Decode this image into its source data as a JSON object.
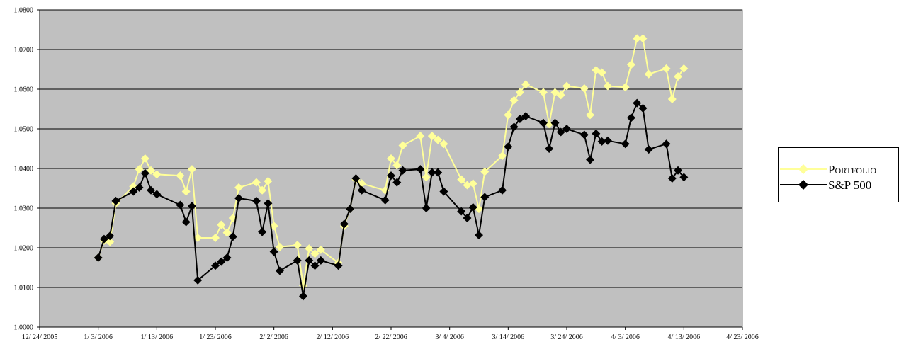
{
  "chart_data": {
    "type": "line",
    "title": "",
    "xlabel": "",
    "ylabel": "",
    "ylim": [
      1.0,
      1.08
    ],
    "y_ticks": [
      "1.0000",
      "1.0100",
      "1.0200",
      "1.0300",
      "1.0400",
      "1.0500",
      "1.0600",
      "1.0700",
      "1.0800"
    ],
    "x_ticks": [
      "12/24/2005",
      "1/3/2006",
      "1/13/2006",
      "1/23/2006",
      "2/2/2006",
      "2/12/2006",
      "2/22/2006",
      "3/4/2006",
      "3/14/2006",
      "3/24/2006",
      "4/3/2006",
      "4/13/2006",
      "4/23/2006"
    ],
    "x_tick_labels": [
      "12/ 24/ 2005",
      "1/ 3/ 2006",
      "1/ 13/ 2006",
      "1/ 23/ 2006",
      "2/ 2/ 2006",
      "2/ 12/ 2006",
      "2/ 22/ 2006",
      "3/ 4/ 2006",
      "3/ 14/ 2006",
      "3/ 24/ 2006",
      "4/ 3/ 2006",
      "4/ 13/ 2006",
      "4/ 23/ 2006"
    ],
    "grid": true,
    "plot_background": "#c0c0c0",
    "legend_position": "right",
    "series": [
      {
        "name": "Portfolio",
        "color": "#ffff99",
        "marker": "diamond",
        "points": [
          [
            "2006-01-03",
            1.0175
          ],
          [
            "2006-01-04",
            1.0218
          ],
          [
            "2006-01-05",
            1.0215
          ],
          [
            "2006-01-06",
            1.0312
          ],
          [
            "2006-01-09",
            1.0355
          ],
          [
            "2006-01-10",
            1.0398
          ],
          [
            "2006-01-11",
            1.0425
          ],
          [
            "2006-01-12",
            1.0395
          ],
          [
            "2006-01-13",
            1.0385
          ],
          [
            "2006-01-17",
            1.0382
          ],
          [
            "2006-01-18",
            1.0342
          ],
          [
            "2006-01-19",
            1.0398
          ],
          [
            "2006-01-20",
            1.0225
          ],
          [
            "2006-01-23",
            1.0225
          ],
          [
            "2006-01-24",
            1.0258
          ],
          [
            "2006-01-25",
            1.0238
          ],
          [
            "2006-01-26",
            1.0275
          ],
          [
            "2006-01-27",
            1.0352
          ],
          [
            "2006-01-30",
            1.0365
          ],
          [
            "2006-01-31",
            1.0345
          ],
          [
            "2006-02-01",
            1.0368
          ],
          [
            "2006-02-02",
            1.0255
          ],
          [
            "2006-02-03",
            1.0202
          ],
          [
            "2006-02-06",
            1.0207
          ],
          [
            "2006-02-07",
            1.0105
          ],
          [
            "2006-02-08",
            1.0198
          ],
          [
            "2006-02-09",
            1.0185
          ],
          [
            "2006-02-10",
            1.0195
          ],
          [
            "2006-02-13",
            1.0162
          ],
          [
            "2006-02-14",
            1.0255
          ],
          [
            "2006-02-15",
            1.0298
          ],
          [
            "2006-02-16",
            1.0372
          ],
          [
            "2006-02-17",
            1.0362
          ],
          [
            "2006-02-21",
            1.0345
          ],
          [
            "2006-02-22",
            1.0425
          ],
          [
            "2006-02-23",
            1.0408
          ],
          [
            "2006-02-24",
            1.0458
          ],
          [
            "2006-02-27",
            1.0482
          ],
          [
            "2006-02-28",
            1.0378
          ],
          [
            "2006-03-01",
            1.0482
          ],
          [
            "2006-03-02",
            1.0472
          ],
          [
            "2006-03-03",
            1.0462
          ],
          [
            "2006-03-06",
            1.0372
          ],
          [
            "2006-03-07",
            1.0358
          ],
          [
            "2006-03-08",
            1.0362
          ],
          [
            "2006-03-09",
            1.0298
          ],
          [
            "2006-03-10",
            1.0392
          ],
          [
            "2006-03-13",
            1.0432
          ],
          [
            "2006-03-14",
            1.0535
          ],
          [
            "2006-03-15",
            1.0572
          ],
          [
            "2006-03-16",
            1.0592
          ],
          [
            "2006-03-17",
            1.0612
          ],
          [
            "2006-03-20",
            1.0592
          ],
          [
            "2006-03-21",
            1.0512
          ],
          [
            "2006-03-22",
            1.0592
          ],
          [
            "2006-03-23",
            1.0585
          ],
          [
            "2006-03-24",
            1.0608
          ],
          [
            "2006-03-27",
            1.0602
          ],
          [
            "2006-03-28",
            1.0535
          ],
          [
            "2006-03-29",
            1.0648
          ],
          [
            "2006-03-30",
            1.0642
          ],
          [
            "2006-03-31",
            1.0608
          ],
          [
            "2006-04-03",
            1.0605
          ],
          [
            "2006-04-04",
            1.0662
          ],
          [
            "2006-04-05",
            1.0728
          ],
          [
            "2006-04-06",
            1.0728
          ],
          [
            "2006-04-07",
            1.0638
          ],
          [
            "2006-04-10",
            1.0652
          ],
          [
            "2006-04-11",
            1.0575
          ],
          [
            "2006-04-12",
            1.0632
          ],
          [
            "2006-04-13",
            1.0652
          ]
        ]
      },
      {
        "name": "S&P 500",
        "color": "#000000",
        "marker": "diamond",
        "points": [
          [
            "2006-01-03",
            1.0175
          ],
          [
            "2006-01-04",
            1.0222
          ],
          [
            "2006-01-05",
            1.023
          ],
          [
            "2006-01-06",
            1.0318
          ],
          [
            "2006-01-09",
            1.0342
          ],
          [
            "2006-01-10",
            1.0352
          ],
          [
            "2006-01-11",
            1.0388
          ],
          [
            "2006-01-12",
            1.0345
          ],
          [
            "2006-01-13",
            1.0335
          ],
          [
            "2006-01-17",
            1.0308
          ],
          [
            "2006-01-18",
            1.0265
          ],
          [
            "2006-01-19",
            1.0305
          ],
          [
            "2006-01-20",
            1.0118
          ],
          [
            "2006-01-23",
            1.0155
          ],
          [
            "2006-01-24",
            1.0165
          ],
          [
            "2006-01-25",
            1.0175
          ],
          [
            "2006-01-26",
            1.0228
          ],
          [
            "2006-01-27",
            1.0325
          ],
          [
            "2006-01-30",
            1.0318
          ],
          [
            "2006-01-31",
            1.024
          ],
          [
            "2006-02-01",
            1.0312
          ],
          [
            "2006-02-02",
            1.019
          ],
          [
            "2006-02-03",
            1.0142
          ],
          [
            "2006-02-06",
            1.0168
          ],
          [
            "2006-02-07",
            1.0078
          ],
          [
            "2006-02-08",
            1.0168
          ],
          [
            "2006-02-09",
            1.0155
          ],
          [
            "2006-02-10",
            1.0168
          ],
          [
            "2006-02-13",
            1.0155
          ],
          [
            "2006-02-14",
            1.026
          ],
          [
            "2006-02-15",
            1.0298
          ],
          [
            "2006-02-16",
            1.0375
          ],
          [
            "2006-02-17",
            1.0345
          ],
          [
            "2006-02-21",
            1.032
          ],
          [
            "2006-02-22",
            1.0382
          ],
          [
            "2006-02-23",
            1.0365
          ],
          [
            "2006-02-24",
            1.0395
          ],
          [
            "2006-02-27",
            1.0398
          ],
          [
            "2006-02-28",
            1.03
          ],
          [
            "2006-03-01",
            1.039
          ],
          [
            "2006-03-02",
            1.039
          ],
          [
            "2006-03-03",
            1.0342
          ],
          [
            "2006-03-06",
            1.0292
          ],
          [
            "2006-03-07",
            1.0275
          ],
          [
            "2006-03-08",
            1.0302
          ],
          [
            "2006-03-09",
            1.0232
          ],
          [
            "2006-03-10",
            1.0328
          ],
          [
            "2006-03-13",
            1.0345
          ],
          [
            "2006-03-14",
            1.0455
          ],
          [
            "2006-03-15",
            1.0505
          ],
          [
            "2006-03-16",
            1.0525
          ],
          [
            "2006-03-17",
            1.0532
          ],
          [
            "2006-03-20",
            1.0515
          ],
          [
            "2006-03-21",
            1.045
          ],
          [
            "2006-03-22",
            1.0515
          ],
          [
            "2006-03-23",
            1.0492
          ],
          [
            "2006-03-24",
            1.05
          ],
          [
            "2006-03-27",
            1.0485
          ],
          [
            "2006-03-28",
            1.0422
          ],
          [
            "2006-03-29",
            1.0488
          ],
          [
            "2006-03-30",
            1.0468
          ],
          [
            "2006-03-31",
            1.047
          ],
          [
            "2006-04-03",
            1.0462
          ],
          [
            "2006-04-04",
            1.0528
          ],
          [
            "2006-04-05",
            1.0565
          ],
          [
            "2006-04-06",
            1.0552
          ],
          [
            "2006-04-07",
            1.0448
          ],
          [
            "2006-04-10",
            1.0462
          ],
          [
            "2006-04-11",
            1.0375
          ],
          [
            "2006-04-12",
            1.0395
          ],
          [
            "2006-04-13",
            1.0378
          ]
        ]
      }
    ]
  },
  "legend": {
    "items": [
      {
        "label": "Portfolio",
        "color": "#ffff99"
      },
      {
        "label": "S&P 500",
        "color": "#000000"
      }
    ]
  }
}
